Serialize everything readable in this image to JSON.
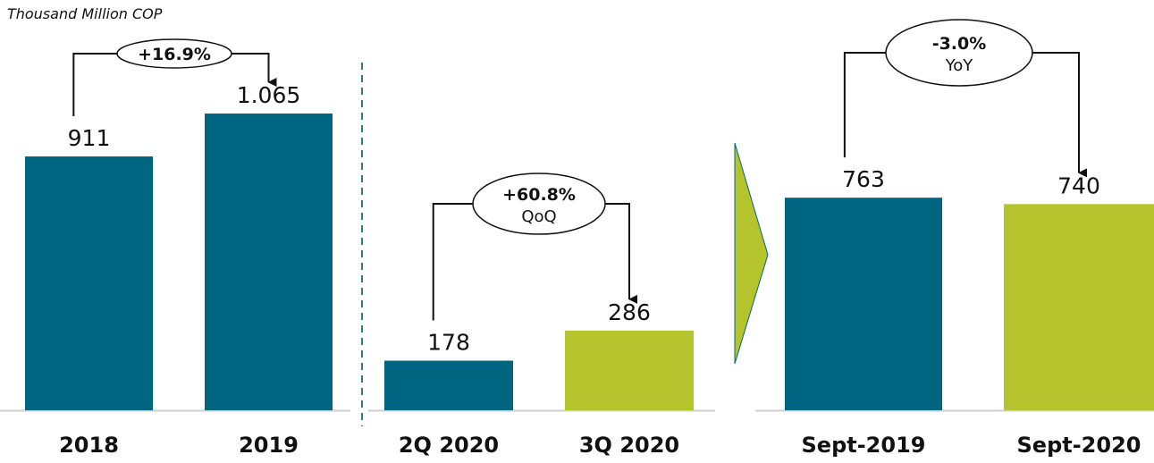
{
  "unit_label": "Thousand Million COP",
  "colors": {
    "teal": "#006580",
    "lime": "#b5c42d",
    "divider": "#2f7d73",
    "axis": "#cfcfcf",
    "text": "#111111"
  },
  "chart_data": [
    {
      "type": "bar",
      "categories": [
        "2018",
        "2019"
      ],
      "values": [
        911,
        1065
      ],
      "value_labels": [
        "911",
        "1.065"
      ],
      "bar_colors": [
        "teal",
        "teal"
      ],
      "change": {
        "value": "+16.9%",
        "sub": ""
      }
    },
    {
      "type": "bar",
      "categories": [
        "2Q 2020",
        "3Q 2020"
      ],
      "values": [
        178,
        286
      ],
      "value_labels": [
        "178",
        "286"
      ],
      "bar_colors": [
        "teal",
        "lime"
      ],
      "change": {
        "value": "+60.8%",
        "sub": "QoQ"
      }
    },
    {
      "type": "bar",
      "categories": [
        "Sept-2019",
        "Sept-2020"
      ],
      "values": [
        763,
        740
      ],
      "value_labels": [
        "763",
        "740"
      ],
      "bar_colors": [
        "teal",
        "lime"
      ],
      "change": {
        "value": "-3.0%",
        "sub": "YoY"
      }
    }
  ]
}
